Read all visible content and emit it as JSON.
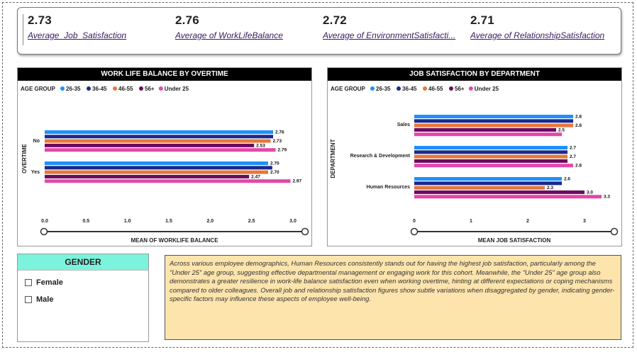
{
  "kpis": [
    {
      "value": "2.73",
      "label": "Average_Job_Satisfaction"
    },
    {
      "value": "2.76",
      "label": "Average of WorkLifeBalance"
    },
    {
      "value": "2.72",
      "label": "Average of EnvironmentSatisfacti..."
    },
    {
      "value": "2.71",
      "label": "Average of RelationshipSatisfaction"
    }
  ],
  "legend_title": "AGE GROUP",
  "colors": {
    "26-35": "#1e90ff",
    "36-45": "#1a2a8c",
    "46-55": "#e8773a",
    "56+": "#6b0a5e",
    "Under 25": "#e347a8",
    "slicer_header": "#7cf3dc",
    "narrative_bg": "#fde4ad"
  },
  "chart_data": [
    {
      "type": "bar",
      "orientation": "horizontal",
      "title": "WORK LIFE BALANCE BY OVERTIME",
      "ylabel": "OVERTIME",
      "xlabel": "MEAN OF WORKLIFE BALANCE",
      "xlim": [
        0,
        3
      ],
      "xticks": [
        "0.0",
        "0.5",
        "1.0",
        "1.5",
        "2.0",
        "2.5",
        "3.0"
      ],
      "xtick_values": [
        0,
        0.5,
        1,
        1.5,
        2,
        2.5,
        3
      ],
      "categories": [
        "No",
        "Yes"
      ],
      "series": [
        {
          "name": "26-35",
          "values": [
            2.76,
            2.7
          ],
          "labels": [
            "2.76",
            "2.70"
          ]
        },
        {
          "name": "36-45",
          "values": [
            2.76,
            2.75
          ],
          "labels": [
            "",
            ""
          ]
        },
        {
          "name": "46-55",
          "values": [
            2.73,
            2.7
          ],
          "labels": [
            "2.73",
            "2.70"
          ]
        },
        {
          "name": "56+",
          "values": [
            2.53,
            2.47
          ],
          "labels": [
            "2.53",
            "2.47"
          ]
        },
        {
          "name": "Under 25",
          "values": [
            2.79,
            2.97
          ],
          "labels": [
            "2.79",
            "2.97"
          ]
        }
      ],
      "legend_position": "top-left",
      "grid": false
    },
    {
      "type": "bar",
      "orientation": "horizontal",
      "title": "JOB SATISFACTION BY DEPARTMENT",
      "ylabel": "DEPARTMENT",
      "xlabel": "MEAN JOB SATISFACTION",
      "xlim": [
        0,
        3.3
      ],
      "xticks": [
        "0",
        "1",
        "2",
        "3"
      ],
      "xtick_values": [
        0,
        1,
        2,
        3
      ],
      "categories": [
        "Sales",
        "Research & Development",
        "Human Resources"
      ],
      "series": [
        {
          "name": "26-35",
          "values": [
            2.8,
            2.7,
            2.6
          ],
          "labels": [
            "2.8",
            "2.7",
            "2.6"
          ]
        },
        {
          "name": "36-45",
          "values": [
            2.8,
            2.7,
            2.6
          ],
          "labels": [
            "",
            "",
            ""
          ]
        },
        {
          "name": "46-55",
          "values": [
            2.8,
            2.7,
            2.3
          ],
          "labels": [
            "2.8",
            "2.7",
            "2.3"
          ]
        },
        {
          "name": "56+",
          "values": [
            2.5,
            2.7,
            3.0
          ],
          "labels": [
            "2.5",
            "",
            "3.0"
          ]
        },
        {
          "name": "Under 25",
          "values": [
            2.6,
            2.8,
            3.3
          ],
          "labels": [
            "",
            "2.8",
            "3.3"
          ]
        }
      ],
      "legend_position": "top-left",
      "grid": false
    }
  ],
  "slicer": {
    "title": "GENDER",
    "options": [
      "Female",
      "Male"
    ]
  },
  "narrative": "Across various employee demographics, Human Resources consistently stands out for having the highest job satisfaction, particularly among the \"Under 25\" age group, suggesting effective departmental management or engaging work for this cohort. Meanwhile, the \"Under 25\" age group also demonstrates a greater resilience in work-life balance satisfaction even when working overtime, hinting at different expectations or coping mechanisms compared to older colleagues. Overall job and relationship satisfaction figures show subtle variations when disaggregated by gender, indicating gender-specific factors may influence these aspects of employee well-being."
}
